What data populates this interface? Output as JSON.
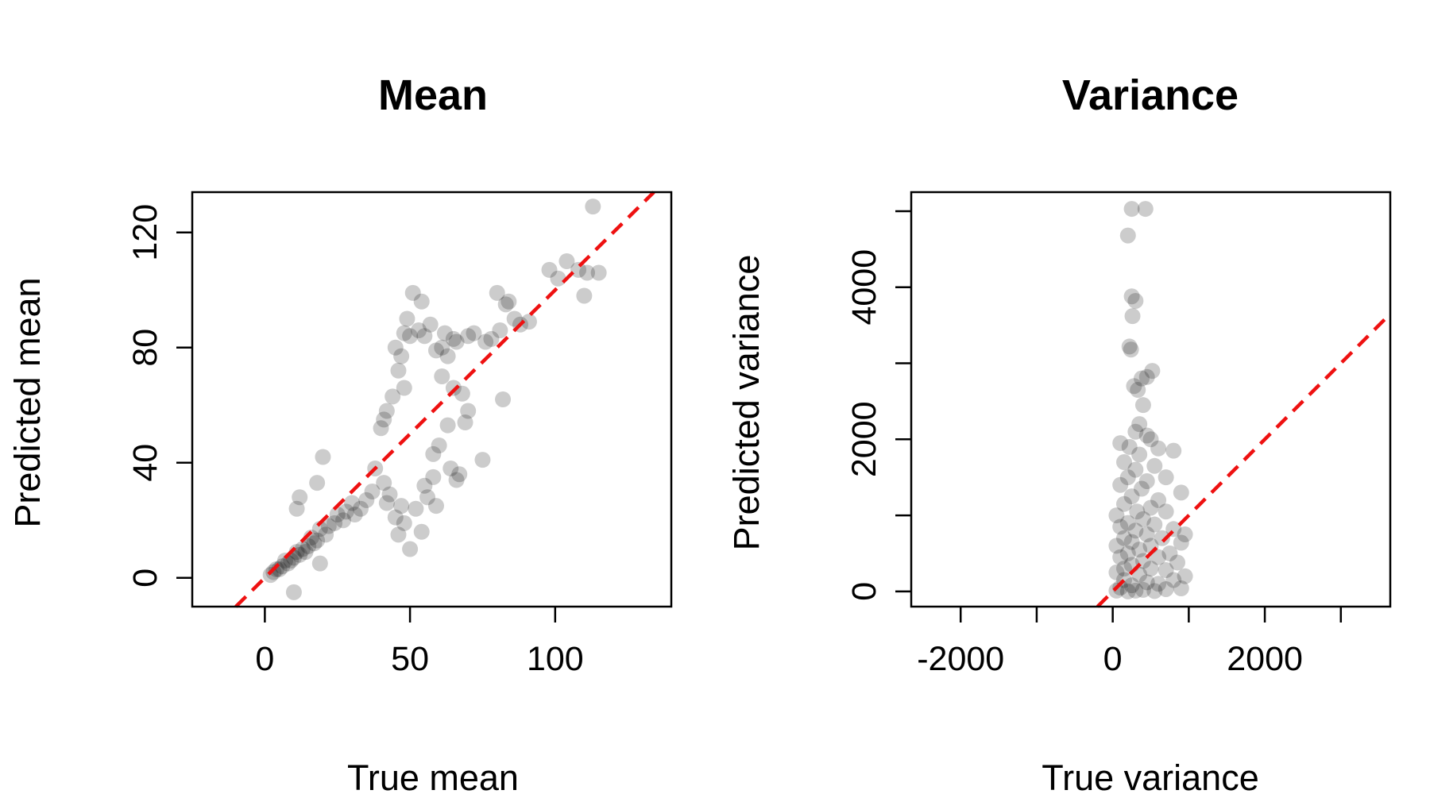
{
  "chart_data": [
    {
      "type": "scatter",
      "title": "Mean",
      "xlabel": "True mean",
      "ylabel": "Predicted mean",
      "xlim": [
        -25,
        140
      ],
      "ylim": [
        -10,
        134
      ],
      "xticks": [
        0,
        50,
        100
      ],
      "yticks": [
        0,
        40,
        80,
        120
      ],
      "grid": false,
      "legend": "none",
      "reference_line": {
        "kind": "identity",
        "slope": 1,
        "intercept": 0,
        "color": "#ee1111",
        "style": "dashed"
      },
      "point_color": "#000000",
      "point_alpha": 0.2,
      "points": [
        [
          113,
          129
        ],
        [
          104,
          110
        ],
        [
          108,
          107
        ],
        [
          111,
          106
        ],
        [
          98,
          107
        ],
        [
          115,
          106
        ],
        [
          110,
          98
        ],
        [
          101,
          104
        ],
        [
          88,
          88
        ],
        [
          86,
          90
        ],
        [
          91,
          89
        ],
        [
          78,
          83
        ],
        [
          81,
          86
        ],
        [
          76,
          82
        ],
        [
          72,
          85
        ],
        [
          70,
          84
        ],
        [
          84,
          96
        ],
        [
          83,
          95
        ],
        [
          80,
          99
        ],
        [
          82,
          62
        ],
        [
          65,
          83
        ],
        [
          66,
          82
        ],
        [
          62,
          85
        ],
        [
          61,
          80
        ],
        [
          63,
          77
        ],
        [
          55,
          84
        ],
        [
          53,
          86
        ],
        [
          50,
          84
        ],
        [
          48,
          85
        ],
        [
          49,
          90
        ],
        [
          54,
          96
        ],
        [
          51,
          99
        ],
        [
          57,
          88
        ],
        [
          59,
          79
        ],
        [
          45,
          80
        ],
        [
          47,
          77
        ],
        [
          46,
          72
        ],
        [
          48,
          66
        ],
        [
          44,
          63
        ],
        [
          42,
          58
        ],
        [
          41,
          55
        ],
        [
          40,
          52
        ],
        [
          61,
          70
        ],
        [
          65,
          66
        ],
        [
          68,
          64
        ],
        [
          70,
          58
        ],
        [
          69,
          54
        ],
        [
          63,
          53
        ],
        [
          60,
          46
        ],
        [
          58,
          43
        ],
        [
          75,
          41
        ],
        [
          67,
          36
        ],
        [
          64,
          38
        ],
        [
          66,
          34
        ],
        [
          58,
          35
        ],
        [
          55,
          32
        ],
        [
          38,
          38
        ],
        [
          37,
          30
        ],
        [
          35,
          27
        ],
        [
          33,
          24
        ],
        [
          31,
          22
        ],
        [
          30,
          26
        ],
        [
          28,
          23
        ],
        [
          27,
          20
        ],
        [
          25,
          22
        ],
        [
          24,
          19
        ],
        [
          22,
          18
        ],
        [
          21,
          15
        ],
        [
          19,
          17
        ],
        [
          18,
          13
        ],
        [
          17,
          12
        ],
        [
          16,
          14
        ],
        [
          15,
          11
        ],
        [
          14,
          9
        ],
        [
          13,
          10
        ],
        [
          12,
          8
        ],
        [
          11,
          9
        ],
        [
          10,
          7
        ],
        [
          9,
          6
        ],
        [
          8,
          5
        ],
        [
          7,
          6
        ],
        [
          6,
          4
        ],
        [
          5,
          3
        ],
        [
          4,
          3
        ],
        [
          3,
          2
        ],
        [
          2,
          1
        ],
        [
          20,
          42
        ],
        [
          18,
          33
        ],
        [
          12,
          28
        ],
        [
          11,
          24
        ],
        [
          19,
          5
        ],
        [
          10,
          -5
        ],
        [
          46,
          15
        ],
        [
          50,
          10
        ],
        [
          54,
          16
        ],
        [
          48,
          19
        ],
        [
          45,
          21
        ],
        [
          42,
          26
        ],
        [
          52,
          24
        ],
        [
          47,
          25
        ],
        [
          56,
          28
        ],
        [
          43,
          29
        ],
        [
          59,
          25
        ],
        [
          41,
          33
        ]
      ]
    },
    {
      "type": "scatter",
      "title": "Variance",
      "xlabel": "True variance",
      "ylabel": "Predicted variance",
      "xlim": [
        -2650,
        3650
      ],
      "ylim": [
        -200,
        5250
      ],
      "xticks": [
        -2000,
        0,
        2000
      ],
      "xticks_minor": [
        -2000,
        -1000,
        0,
        1000,
        2000,
        3000
      ],
      "yticks": [
        0,
        2000,
        4000
      ],
      "yticks_minor": [
        0,
        1000,
        2000,
        3000,
        4000,
        5000
      ],
      "grid": false,
      "legend": "none",
      "reference_line": {
        "kind": "identity",
        "slope": 1,
        "intercept": 0,
        "color": "#ee1111",
        "style": "dashed"
      },
      "point_color": "#000000",
      "point_alpha": 0.2,
      "points": [
        [
          250,
          5030
        ],
        [
          430,
          5030
        ],
        [
          200,
          4680
        ],
        [
          250,
          3880
        ],
        [
          300,
          3820
        ],
        [
          260,
          3620
        ],
        [
          220,
          3220
        ],
        [
          240,
          3180
        ],
        [
          380,
          2800
        ],
        [
          450,
          2820
        ],
        [
          520,
          2900
        ],
        [
          280,
          2700
        ],
        [
          330,
          2650
        ],
        [
          400,
          2450
        ],
        [
          350,
          2200
        ],
        [
          300,
          2100
        ],
        [
          450,
          2050
        ],
        [
          500,
          2000
        ],
        [
          100,
          1950
        ],
        [
          220,
          1900
        ],
        [
          600,
          1880
        ],
        [
          800,
          1850
        ],
        [
          350,
          1800
        ],
        [
          150,
          1700
        ],
        [
          550,
          1650
        ],
        [
          300,
          1600
        ],
        [
          700,
          1500
        ],
        [
          200,
          1500
        ],
        [
          450,
          1450
        ],
        [
          900,
          1300
        ],
        [
          100,
          1400
        ],
        [
          380,
          1350
        ],
        [
          250,
          1250
        ],
        [
          600,
          1200
        ],
        [
          150,
          1150
        ],
        [
          500,
          1100
        ],
        [
          320,
          1050
        ],
        [
          50,
          1000
        ],
        [
          700,
          1050
        ],
        [
          400,
          950
        ],
        [
          200,
          900
        ],
        [
          550,
          880
        ],
        [
          100,
          850
        ],
        [
          800,
          820
        ],
        [
          300,
          800
        ],
        [
          950,
          750
        ],
        [
          450,
          750
        ],
        [
          150,
          700
        ],
        [
          650,
          700
        ],
        [
          250,
          650
        ],
        [
          900,
          640
        ],
        [
          50,
          600
        ],
        [
          500,
          600
        ],
        [
          350,
          550
        ],
        [
          750,
          500
        ],
        [
          200,
          500
        ],
        [
          100,
          450
        ],
        [
          600,
          450
        ],
        [
          400,
          400
        ],
        [
          850,
          380
        ],
        [
          250,
          350
        ],
        [
          150,
          300
        ],
        [
          500,
          300
        ],
        [
          700,
          280
        ],
        [
          50,
          250
        ],
        [
          350,
          220
        ],
        [
          950,
          200
        ],
        [
          800,
          150
        ],
        [
          150,
          150
        ],
        [
          450,
          120
        ],
        [
          600,
          100
        ],
        [
          250,
          80
        ],
        [
          100,
          50
        ],
        [
          900,
          40
        ],
        [
          700,
          30
        ],
        [
          400,
          20
        ],
        [
          300,
          10
        ],
        [
          50,
          10
        ],
        [
          550,
          5
        ],
        [
          200,
          0
        ]
      ]
    }
  ]
}
